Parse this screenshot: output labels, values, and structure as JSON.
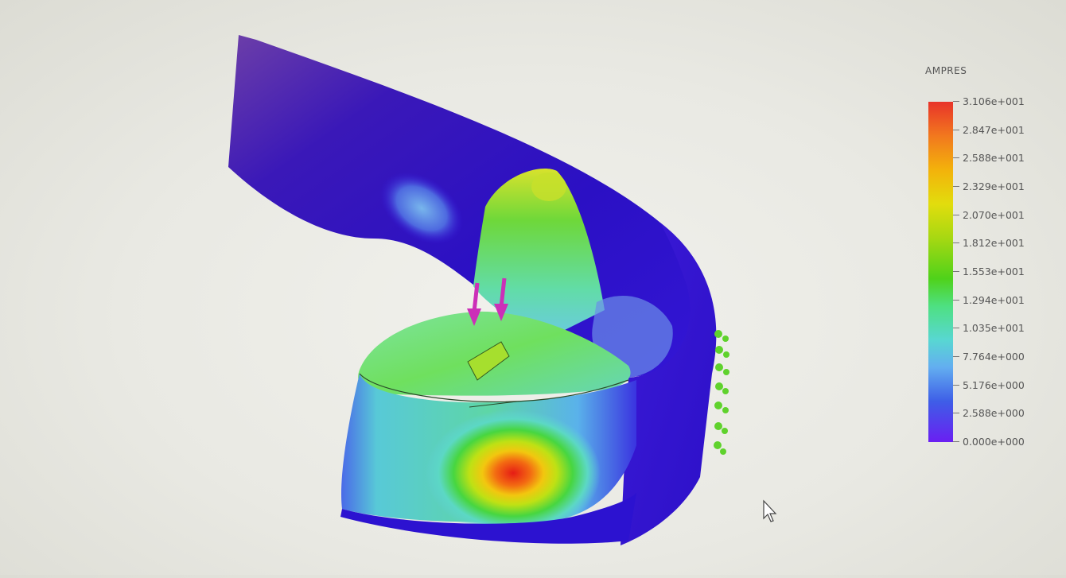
{
  "legend": {
    "title": "AMPRES",
    "labels": [
      "3.106e+001",
      "2.847e+001",
      "2.588e+001",
      "2.329e+001",
      "2.070e+001",
      "1.812e+001",
      "1.553e+001",
      "1.294e+001",
      "1.035e+001",
      "7.764e+000",
      "5.176e+000",
      "2.588e+000",
      "0.000e+000"
    ]
  },
  "colors": {
    "max_red": "#e8332a",
    "min_violet": "#6a1ff2",
    "load_arrows_magenta": "#cc2fb8",
    "fixture_green": "#5fd22c"
  },
  "icons": {
    "load_arrows": "arrow-down-icon",
    "fixtures": "fixture-icon",
    "cursor": "mouse-pointer-icon"
  }
}
